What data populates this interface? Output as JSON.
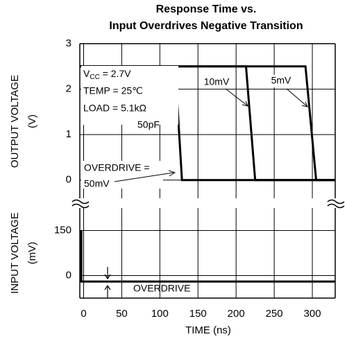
{
  "title": [
    "Response Time vs.",
    "Input Overdrives Negative Transition"
  ],
  "chart_data": [
    {
      "type": "line",
      "ylabel": [
        "OUTPUT VOLTAGE",
        "(V)"
      ],
      "xlim": [
        -5,
        330
      ],
      "ylim": [
        -0.4,
        3
      ],
      "yticks": [
        0,
        1,
        2,
        3
      ],
      "grid": true,
      "series": [
        {
          "name": "50mV",
          "color": "#000000",
          "x": [
            -5,
            120,
            129,
            330
          ],
          "values": [
            2.5,
            2.5,
            0,
            0
          ]
        },
        {
          "name": "10mV",
          "color": "#000000",
          "x": [
            -5,
            213,
            225,
            330
          ],
          "values": [
            2.5,
            2.5,
            0,
            0
          ]
        },
        {
          "name": "5mV",
          "color": "#000000",
          "x": [
            -5,
            291,
            305,
            330
          ],
          "values": [
            2.5,
            2.5,
            0,
            0
          ]
        }
      ]
    },
    {
      "type": "line",
      "ylabel": [
        "INPUT VOLTAGE",
        "(mV)"
      ],
      "xlabel": "TIME (ns)",
      "xlim": [
        -5,
        330
      ],
      "ylim": [
        -75,
        225
      ],
      "xticks": [
        0,
        50,
        100,
        150,
        200,
        250,
        300
      ],
      "yticks": [
        0,
        150
      ],
      "grid": true,
      "series": [
        {
          "name": "INPUT",
          "color": "#000000",
          "x": [
            -3,
            -3,
            -3,
            330
          ],
          "values": [
            150,
            150,
            -20,
            -20
          ]
        }
      ]
    }
  ],
  "annotations": {
    "vcc": [
      "V",
      "CC",
      " = 2.7V"
    ],
    "temp": "TEMP = 25℃",
    "load": "LOAD = 5.1kΩ",
    "cap": "50pF",
    "od1": "OVERDRIVE =",
    "od2": "50mV",
    "od": "OVERDRIVE"
  }
}
